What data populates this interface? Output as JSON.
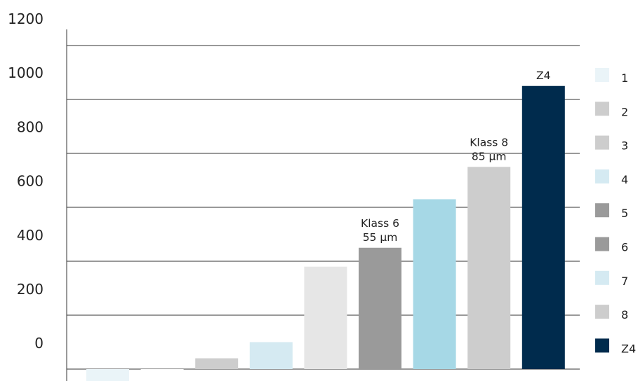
{
  "chart_data": {
    "type": "bar",
    "categories": [
      "1",
      "2",
      "3",
      "4",
      "5",
      "6",
      "7",
      "8",
      "Z4"
    ],
    "values": [
      -60,
      0,
      40,
      100,
      380,
      450,
      630,
      750,
      1050
    ],
    "colors": [
      "#eaf4f8",
      "#f2f2f2",
      "#cdcdcd",
      "#d5eaf2",
      "#e6e6e6",
      "#9a9a9a",
      "#a6d8e6",
      "#cdcdcd",
      "#002b4d"
    ],
    "yticks": [
      "1200",
      "1000",
      "800",
      "600",
      "400",
      "200",
      "0"
    ],
    "ylim": [
      0,
      1200
    ],
    "grid": true,
    "legend": {
      "position": "right",
      "entries": [
        {
          "label": "1",
          "color": "#eaf4f8"
        },
        {
          "label": "2",
          "color": "#cdcdcd"
        },
        {
          "label": "3",
          "color": "#cdcdcd"
        },
        {
          "label": "4",
          "color": "#d5eaf2"
        },
        {
          "label": "5",
          "color": "#9a9a9a"
        },
        {
          "label": "6",
          "color": "#9a9a9a"
        },
        {
          "label": "7",
          "color": "#d5eaf2"
        },
        {
          "label": "8",
          "color": "#cdcdcd"
        },
        {
          "label": "Z4",
          "color": "#002b4d"
        }
      ]
    },
    "annotations": [
      {
        "category": "6",
        "lines": [
          "Klass 6",
          "55 µm"
        ]
      },
      {
        "category": "8",
        "lines": [
          "Klass 8",
          "85 µm"
        ]
      },
      {
        "category": "Z4",
        "lines": [
          "Z4"
        ]
      }
    ]
  }
}
